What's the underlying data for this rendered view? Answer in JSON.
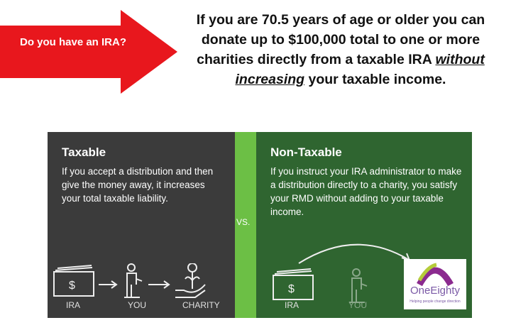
{
  "callout": {
    "text": "Do you have an IRA?",
    "color": "#e8171d"
  },
  "headline": {
    "line1": "If you are 70.5 years of age or older you can donate up to $100,000 total to one or more charities directly from a taxable IRA",
    "emphasis": "without increasing",
    "line2": " your taxable income."
  },
  "taxable": {
    "title": "Taxable",
    "body": "If you accept a distribution and then give the money away, it increases your total taxable liability.",
    "labels": [
      "IRA",
      "YOU",
      "CHARITY"
    ]
  },
  "vs": "VS.",
  "non_taxable": {
    "title": "Non-Taxable",
    "body": "If you instruct your IRA administrator to make a distribution directly to a charity, you satisfy your RMD without adding to your taxable income.",
    "labels": [
      "IRA",
      "YOU"
    ]
  },
  "logo": {
    "name": "OneEighty",
    "tagline": "Helping people change direction"
  },
  "colors": {
    "dark": "#3b3b3b",
    "green": "#2f6530",
    "accent": "#6cbf45"
  }
}
